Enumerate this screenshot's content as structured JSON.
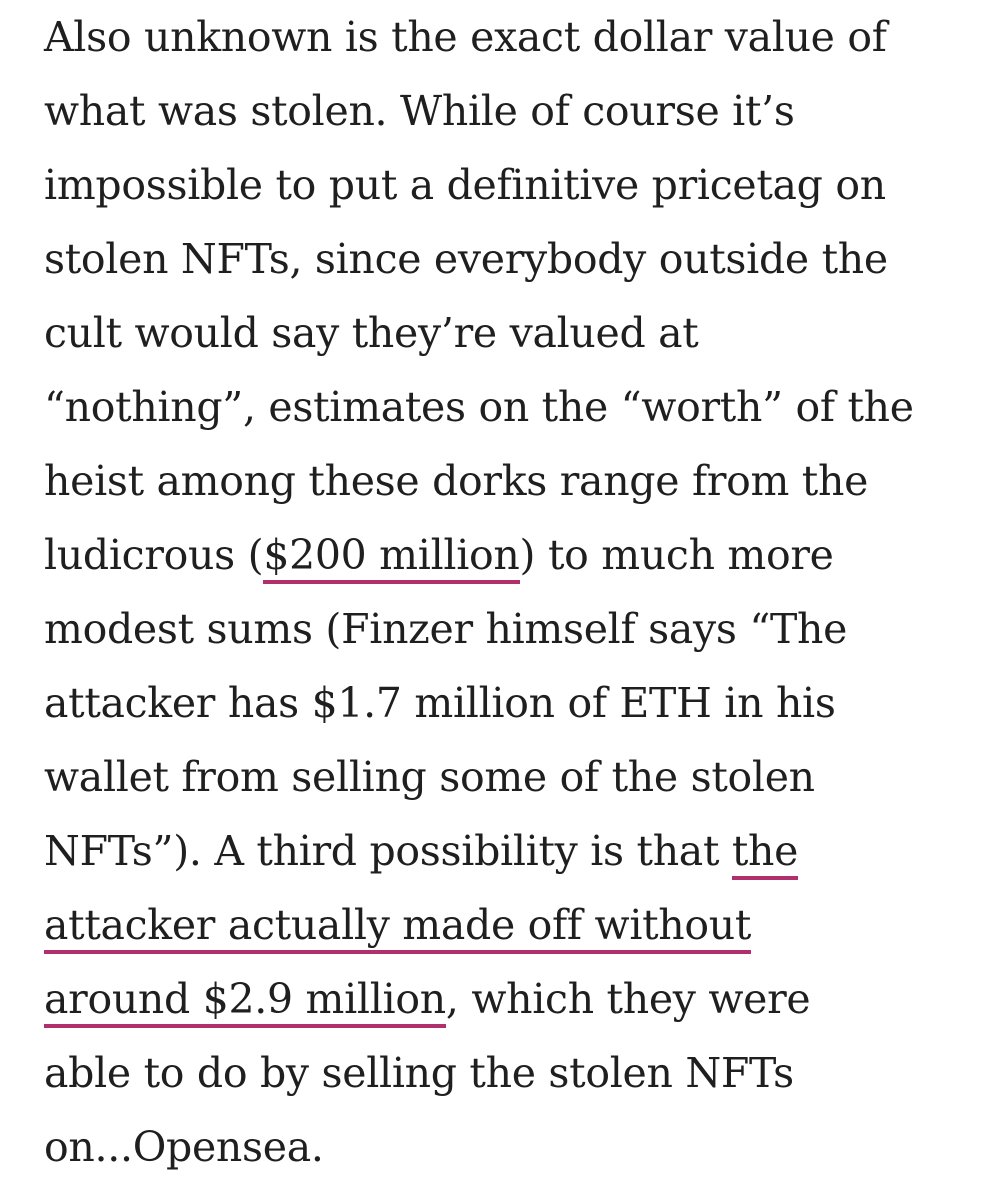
{
  "article": {
    "lines": [
      "Also unknown is the exact dollar value of",
      "what was stolen. While of course it’s",
      "impossible to put a definitive pricetag on",
      "stolen NFTs, since everybody outside the",
      "cult would say they’re valued at",
      "“nothing”, estimates on the “worth” of the",
      "heist among these dorks range from the",
      {
        "before": "ludicrous (",
        "link": "$200 million",
        "after": ") to much more"
      },
      "modest sums (Finzer himself says “The",
      "attacker has $1.7 million of ETH in his",
      "wallet from selling some of the stolen",
      {
        "before": "NFTs”). A third possibility is that ",
        "link": "the"
      },
      {
        "link": "attacker actually made off without"
      },
      {
        "link": "around $2.9 million",
        "after": ", which they were"
      },
      "able to do by selling the stolen NFTs",
      "on...Opensea."
    ]
  },
  "colors": {
    "text": "#1f1f1f",
    "link_underline": "#b0306c",
    "background": "#ffffff"
  }
}
